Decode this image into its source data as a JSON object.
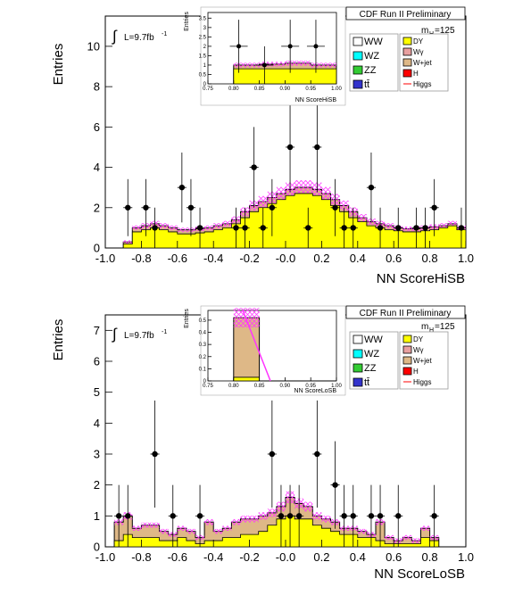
{
  "chart_data": [
    {
      "type": "bar",
      "title": "CDF Run II Preliminary",
      "xlabel": "NN ScoreHiSB",
      "ylabel": "Entries",
      "xlim": [
        -1.0,
        1.0
      ],
      "ylim": [
        0,
        11.5
      ],
      "x_ticks": [
        "-1.0",
        "-0.8",
        "-0.6",
        "-0.4",
        "-0.2",
        "-0.0",
        "0.2",
        "0.4",
        "0.6",
        "0.8",
        "1.0"
      ],
      "y_ticks": [
        "0",
        "2",
        "4",
        "6",
        "8",
        "10"
      ],
      "lumi_label": "L=9.7fb",
      "lumi_exp": "-1",
      "mass_label": "m",
      "mass_sub": "H",
      "mass_value": "=125",
      "legend_left": [
        "WW",
        "WZ",
        "ZZ",
        "tt̄"
      ],
      "legend_right": [
        "DY",
        "Wγ",
        "W+jet",
        "H",
        "Higgs"
      ],
      "colors": {
        "DY": "#ffff00",
        "Wgamma": "#e8a0a0",
        "Wjet": "#deb887",
        "edge": "#000000",
        "band": "#ff33ff"
      },
      "bin_width": 0.05,
      "bin_edges_start": -0.9,
      "series": [
        {
          "name": "DY",
          "values": [
            0.2,
            0.8,
            0.9,
            1.0,
            0.9,
            0.8,
            0.7,
            0.7,
            0.75,
            0.8,
            0.9,
            1.0,
            1.2,
            1.5,
            1.8,
            2.0,
            2.2,
            2.4,
            2.6,
            2.7,
            2.7,
            2.6,
            2.4,
            2.1,
            1.8,
            1.5,
            1.3,
            1.1,
            1.0,
            0.9,
            0.85,
            0.8,
            0.8,
            0.85,
            0.9,
            1.0,
            1.1,
            0.9
          ]
        },
        {
          "name": "Total",
          "values": [
            0.3,
            1.0,
            1.1,
            1.2,
            1.1,
            1.0,
            0.9,
            0.9,
            0.95,
            1.0,
            1.1,
            1.2,
            1.4,
            1.8,
            2.1,
            2.3,
            2.5,
            2.7,
            2.9,
            3.0,
            3.0,
            2.9,
            2.7,
            2.4,
            2.1,
            1.8,
            1.5,
            1.3,
            1.2,
            1.1,
            1.0,
            0.95,
            0.95,
            1.0,
            1.05,
            1.1,
            1.2,
            1.0
          ]
        }
      ],
      "data_points": {
        "x": [
          -0.875,
          -0.775,
          -0.725,
          -0.575,
          -0.525,
          -0.475,
          -0.275,
          -0.225,
          -0.175,
          -0.125,
          -0.075,
          0.025,
          0.125,
          0.175,
          0.275,
          0.325,
          0.375,
          0.475,
          0.525,
          0.625,
          0.725,
          0.775,
          0.825,
          0.975
        ],
        "y": [
          2,
          2,
          1,
          3,
          2,
          1,
          1,
          1,
          4,
          1,
          2,
          5,
          1,
          5,
          2,
          1,
          1,
          3,
          1,
          1,
          1,
          1,
          2,
          1
        ]
      },
      "inset": {
        "xlabel": "NN ScoreHiSB",
        "ylabel": "Entries",
        "xlim": [
          0.75,
          1.0
        ],
        "ylim": [
          0,
          3.8
        ],
        "x_ticks": [
          "0.75",
          "0.80",
          "0.85",
          "0.90",
          "0.95",
          "1.00"
        ],
        "y_ticks": [
          "0",
          "0.5",
          "1",
          "1.5",
          "2",
          "2.5",
          "3",
          "3.5"
        ],
        "series": [
          {
            "name": "DY",
            "values": [
              0.8,
              0.8,
              0.8,
              0.8
            ]
          },
          {
            "name": "Total",
            "values": [
              1.0,
              1.05,
              1.1,
              1.0
            ]
          }
        ],
        "data_points": {
          "x": [
            0.81,
            0.86,
            0.91,
            0.96
          ],
          "y": [
            2,
            1,
            2,
            2
          ]
        }
      }
    },
    {
      "type": "bar",
      "title": "CDF Run II Preliminary",
      "xlabel": "NN ScoreLoSB",
      "ylabel": "Entries",
      "xlim": [
        -1.0,
        1.0
      ],
      "ylim": [
        0,
        7.5
      ],
      "x_ticks": [
        "-1.0",
        "-0.8",
        "-0.6",
        "-0.4",
        "-0.2",
        "-0.0",
        "0.2",
        "0.4",
        "0.6",
        "0.8",
        "1.0"
      ],
      "y_ticks": [
        "0",
        "1",
        "2",
        "3",
        "4",
        "5",
        "6",
        "7"
      ],
      "lumi_label": "L=9.7fb",
      "lumi_exp": "-1",
      "mass_label": "m",
      "mass_sub": "H",
      "mass_value": "=125",
      "legend_left": [
        "WW",
        "WZ",
        "ZZ",
        "tt̄"
      ],
      "legend_right": [
        "DY",
        "Wγ",
        "W+jet",
        "H",
        "Higgs"
      ],
      "colors": {
        "DY": "#ffff00",
        "Wjet": "#deb887",
        "edge": "#000000",
        "band": "#ff33ff"
      },
      "bin_width": 0.05,
      "bin_edges_start": -0.95,
      "series": [
        {
          "name": "DY",
          "values": [
            0.2,
            0.4,
            0.3,
            0.3,
            0.3,
            0.2,
            0.2,
            0.3,
            0.2,
            0.1,
            0.2,
            0.2,
            0.3,
            0.3,
            0.4,
            0.4,
            0.5,
            0.7,
            0.9,
            1.0,
            0.9,
            0.9,
            0.7,
            0.6,
            0.5,
            0.4,
            0.4,
            0.3,
            0.3,
            0.2,
            0.1,
            0.1,
            0.1,
            0.1,
            0.3,
            0.2
          ]
        },
        {
          "name": "Total",
          "values": [
            0.8,
            1.0,
            0.6,
            0.7,
            0.7,
            0.5,
            0.4,
            0.6,
            0.5,
            0.3,
            0.8,
            0.5,
            0.6,
            0.8,
            0.9,
            0.9,
            1.0,
            1.1,
            1.3,
            1.6,
            1.4,
            1.3,
            1.0,
            0.9,
            0.8,
            0.6,
            0.6,
            0.5,
            0.4,
            0.8,
            0.3,
            0.2,
            0.3,
            0.2,
            0.6,
            0.3
          ]
        }
      ],
      "data_points": {
        "x": [
          -0.925,
          -0.875,
          -0.725,
          -0.625,
          -0.475,
          -0.075,
          -0.025,
          0.025,
          0.075,
          0.175,
          0.275,
          0.325,
          0.375,
          0.475,
          0.525,
          0.625,
          0.825
        ],
        "y": [
          1,
          1,
          3,
          1,
          1,
          3,
          1,
          1,
          1,
          3,
          2,
          1,
          1,
          1,
          1,
          1,
          1
        ]
      },
      "inset": {
        "xlabel": "NN ScoreLoSB",
        "ylabel": "Entries",
        "xlim": [
          0.75,
          1.0
        ],
        "ylim": [
          0,
          0.58
        ],
        "x_ticks": [
          "0.75",
          "0.80",
          "0.85",
          "0.90",
          "0.95",
          "1.00"
        ],
        "y_ticks": [
          "0",
          "0.1",
          "0.2",
          "0.3",
          "0.4",
          "0.5"
        ],
        "series": [
          {
            "name": "DY",
            "values": [
              0.03,
              0,
              0,
              0
            ]
          },
          {
            "name": "Total",
            "values": [
              0.52,
              0,
              0,
              0
            ]
          }
        ],
        "data_points": {
          "x": [],
          "y": []
        }
      }
    }
  ]
}
